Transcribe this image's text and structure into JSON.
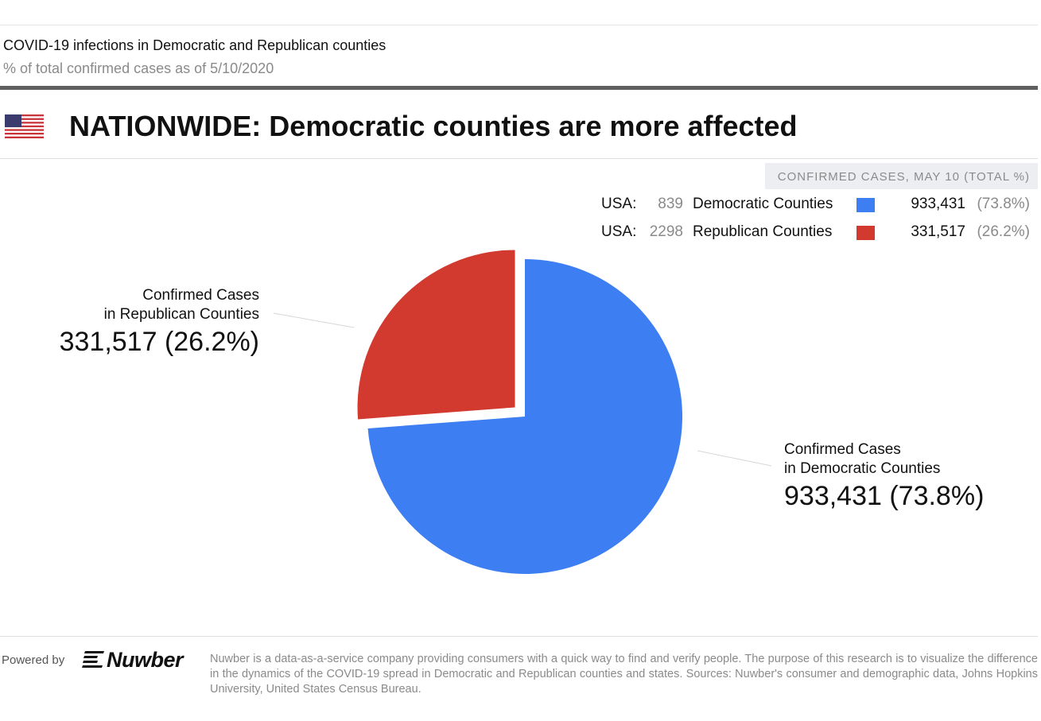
{
  "header": {
    "supertitle": "COVID-19 infections in Democratic and Republican counties",
    "subtitle": "% of total confirmed cases as of 5/10/2020",
    "headline": "NATIONWIDE: Democratic counties are more affected",
    "flag_icon": "us-flag-icon"
  },
  "legend": {
    "title": "CONFIRMED CASES, MAY 10 (TOTAL %)",
    "rows": [
      {
        "region": "USA:",
        "count": "839",
        "name": "Democratic Counties",
        "value": "933,431",
        "pct": "(73.8%)",
        "color": "#3d7ef2"
      },
      {
        "region": "USA:",
        "count": "2298",
        "name": "Republican Counties",
        "value": "331,517",
        "pct": "(26.2%)",
        "color": "#d23a30"
      }
    ]
  },
  "callouts": {
    "republican": {
      "line1": "Confirmed Cases",
      "line2": "in Republican Counties",
      "value": "331,517 (26.2%)"
    },
    "democratic": {
      "line1": "Confirmed Cases",
      "line2": "in Democratic Counties",
      "value": "933,431 (73.8%)"
    }
  },
  "chart_data": {
    "type": "pie",
    "title": "COVID-19 infections in Democratic and Republican counties",
    "subtitle": "% of total confirmed cases as of 5/10/2020",
    "slices": [
      {
        "label": "Confirmed Cases in Democratic Counties",
        "value": 933431,
        "percent": 73.8,
        "color": "#3d7ef2",
        "exploded": false
      },
      {
        "label": "Confirmed Cases in Republican Counties",
        "value": 331517,
        "percent": 26.2,
        "color": "#d23a30",
        "exploded": true
      }
    ]
  },
  "footer": {
    "powered_by": "Powered by",
    "logo_text": "Nuwber",
    "logo_icon": "nuwber-logo-icon",
    "description": "Nuwber is a data-as-a-service company providing consumers with a quick way to find and verify people. The purpose of this research is to visualize the difference in the dynamics of the COVID-19 spread in Democratic and Republican counties and states. Sources: Nuwber's consumer and demographic data, Johns Hopkins University, United States Census Bureau."
  }
}
